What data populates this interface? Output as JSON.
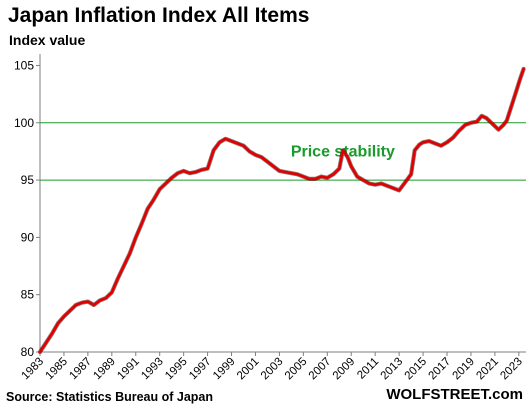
{
  "title": "Japan Inflation Index All Items",
  "subtitle": "Index value",
  "source": "Source: Statistics Bureau of Japan",
  "brand": "WOLFSTREET.com",
  "colors": {
    "line": "#e00000",
    "refline": "#1a9a2a",
    "annotation": "#1a9a2a",
    "axis": "#7f7f7f"
  },
  "chart_data": {
    "type": "line",
    "title": "Japan Inflation Index All Items",
    "ylabel": "Index value",
    "xlabel": "",
    "ylim": [
      80,
      106
    ],
    "yticks": [
      80,
      85,
      90,
      95,
      100,
      105
    ],
    "xlim": [
      1983,
      2023.6
    ],
    "xticks": [
      "1983",
      "1985",
      "1987",
      "1989",
      "1991",
      "1993",
      "1995",
      "1997",
      "1999",
      "2001",
      "2003",
      "2005",
      "2007",
      "2009",
      "2011",
      "2013",
      "2015",
      "2017",
      "2019",
      "2021",
      "2023"
    ],
    "grid": false,
    "reference_lines": [
      95,
      100
    ],
    "annotation": {
      "text": "Price stability",
      "x": 2008.3,
      "y": 97.6
    },
    "series": [
      {
        "points": [
          [
            1983.0,
            80.0
          ],
          [
            1983.5,
            80.8
          ],
          [
            1984.0,
            81.6
          ],
          [
            1984.5,
            82.5
          ],
          [
            1985.0,
            83.1
          ],
          [
            1985.5,
            83.6
          ],
          [
            1986.0,
            84.1
          ],
          [
            1986.5,
            84.3
          ],
          [
            1987.0,
            84.4
          ],
          [
            1987.5,
            84.1
          ],
          [
            1988.0,
            84.5
          ],
          [
            1988.5,
            84.7
          ],
          [
            1989.0,
            85.2
          ],
          [
            1989.5,
            86.4
          ],
          [
            1990.0,
            87.5
          ],
          [
            1990.5,
            88.6
          ],
          [
            1991.0,
            90.0
          ],
          [
            1991.5,
            91.2
          ],
          [
            1992.0,
            92.5
          ],
          [
            1992.5,
            93.3
          ],
          [
            1993.0,
            94.2
          ],
          [
            1993.5,
            94.7
          ],
          [
            1994.0,
            95.2
          ],
          [
            1994.5,
            95.6
          ],
          [
            1995.0,
            95.8
          ],
          [
            1995.5,
            95.6
          ],
          [
            1996.0,
            95.7
          ],
          [
            1996.5,
            95.9
          ],
          [
            1997.0,
            96.0
          ],
          [
            1997.5,
            97.6
          ],
          [
            1998.0,
            98.3
          ],
          [
            1998.5,
            98.6
          ],
          [
            1999.0,
            98.4
          ],
          [
            1999.5,
            98.2
          ],
          [
            2000.0,
            98.0
          ],
          [
            2000.5,
            97.5
          ],
          [
            2001.0,
            97.2
          ],
          [
            2001.5,
            97.0
          ],
          [
            2002.0,
            96.6
          ],
          [
            2002.5,
            96.2
          ],
          [
            2003.0,
            95.8
          ],
          [
            2003.5,
            95.7
          ],
          [
            2004.0,
            95.6
          ],
          [
            2004.5,
            95.5
          ],
          [
            2005.0,
            95.3
          ],
          [
            2005.5,
            95.1
          ],
          [
            2006.0,
            95.1
          ],
          [
            2006.5,
            95.3
          ],
          [
            2007.0,
            95.2
          ],
          [
            2007.5,
            95.5
          ],
          [
            2008.0,
            96.0
          ],
          [
            2008.3,
            97.6
          ],
          [
            2008.7,
            97.0
          ],
          [
            2009.0,
            96.2
          ],
          [
            2009.5,
            95.3
          ],
          [
            2010.0,
            95.0
          ],
          [
            2010.5,
            94.7
          ],
          [
            2011.0,
            94.6
          ],
          [
            2011.5,
            94.7
          ],
          [
            2012.0,
            94.5
          ],
          [
            2012.5,
            94.3
          ],
          [
            2013.0,
            94.1
          ],
          [
            2013.5,
            94.8
          ],
          [
            2014.0,
            95.5
          ],
          [
            2014.3,
            97.6
          ],
          [
            2014.7,
            98.1
          ],
          [
            2015.0,
            98.3
          ],
          [
            2015.5,
            98.4
          ],
          [
            2016.0,
            98.2
          ],
          [
            2016.5,
            98.0
          ],
          [
            2017.0,
            98.3
          ],
          [
            2017.5,
            98.7
          ],
          [
            2018.0,
            99.3
          ],
          [
            2018.5,
            99.8
          ],
          [
            2019.0,
            100.0
          ],
          [
            2019.5,
            100.1
          ],
          [
            2019.9,
            100.6
          ],
          [
            2020.3,
            100.4
          ],
          [
            2020.8,
            99.9
          ],
          [
            2021.3,
            99.4
          ],
          [
            2021.7,
            99.8
          ],
          [
            2022.0,
            100.2
          ],
          [
            2022.4,
            101.5
          ],
          [
            2022.8,
            102.8
          ],
          [
            2023.1,
            103.8
          ],
          [
            2023.4,
            104.7
          ]
        ]
      }
    ]
  }
}
